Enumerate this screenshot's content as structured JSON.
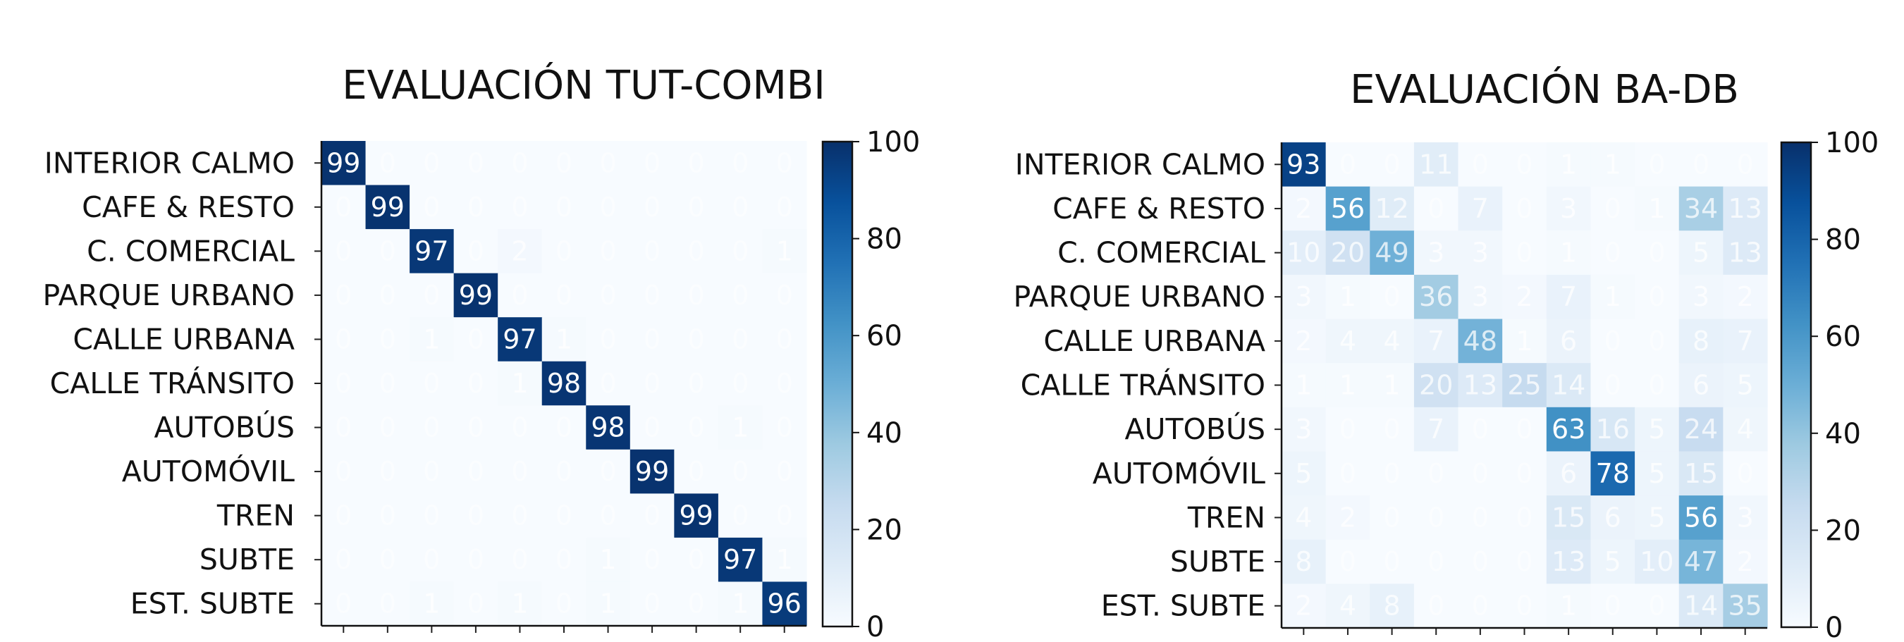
{
  "chart_data": [
    {
      "type": "heatmap",
      "title": "EVALUACIÓN TUT-COMBI",
      "rows": [
        "INTERIOR CALMO",
        "CAFE & RESTO",
        "C. COMERCIAL",
        "PARQUE URBANO",
        "CALLE URBANA",
        "CALLE TRÁNSITO",
        "AUTOBÚS",
        "AUTOMÓVIL",
        "TREN",
        "SUBTE",
        "EST. SUBTE"
      ],
      "values": [
        [
          99,
          0,
          0,
          0,
          0,
          0,
          0,
          0,
          0,
          0,
          0
        ],
        [
          0,
          99,
          0,
          0,
          0,
          0,
          0,
          0,
          0,
          0,
          0
        ],
        [
          0,
          0,
          97,
          0,
          2,
          0,
          0,
          0,
          0,
          0,
          1
        ],
        [
          0,
          0,
          0,
          99,
          0,
          0,
          0,
          0,
          0,
          0,
          0
        ],
        [
          0,
          0,
          1,
          0,
          97,
          1,
          0,
          0,
          0,
          0,
          0
        ],
        [
          0,
          0,
          0,
          0,
          1,
          98,
          0,
          0,
          0,
          0,
          0
        ],
        [
          0,
          0,
          0,
          0,
          0,
          0,
          98,
          0,
          0,
          1,
          0
        ],
        [
          0,
          0,
          0,
          0,
          0,
          0,
          0,
          99,
          0,
          0,
          0
        ],
        [
          0,
          0,
          0,
          0,
          0,
          0,
          0,
          0,
          99,
          0,
          0
        ],
        [
          0,
          0,
          0,
          0,
          0,
          0,
          1,
          0,
          0,
          97,
          1
        ],
        [
          0,
          0,
          1,
          0,
          1,
          0,
          1,
          0,
          0,
          1,
          96
        ]
      ],
      "colorbar": {
        "range": [
          0,
          100
        ],
        "ticks": [
          "0",
          "20",
          "40",
          "60",
          "80",
          "100"
        ]
      },
      "colors": {
        "low": "#f7fbff",
        "high": "#08306b"
      }
    },
    {
      "type": "heatmap",
      "title": "EVALUACIÓN BA-DB",
      "rows": [
        "INTERIOR CALMO",
        "CAFE & RESTO",
        "C. COMERCIAL",
        "PARQUE URBANO",
        "CALLE URBANA",
        "CALLE TRÁNSITO",
        "AUTOBÚS",
        "AUTOMÓVIL",
        "TREN",
        "SUBTE",
        "EST. SUBTE"
      ],
      "values": [
        [
          93,
          0,
          0,
          11,
          0,
          0,
          1,
          1,
          0,
          0,
          0
        ],
        [
          2,
          56,
          12,
          0,
          7,
          0,
          3,
          0,
          1,
          34,
          13
        ],
        [
          10,
          20,
          49,
          3,
          3,
          0,
          1,
          0,
          0,
          5,
          13
        ],
        [
          3,
          1,
          0,
          36,
          3,
          2,
          7,
          1,
          0,
          3,
          2
        ],
        [
          2,
          4,
          4,
          7,
          48,
          1,
          6,
          0,
          0,
          8,
          7
        ],
        [
          1,
          1,
          1,
          20,
          13,
          25,
          14,
          0,
          0,
          6,
          5
        ],
        [
          3,
          0,
          0,
          7,
          0,
          0,
          63,
          16,
          5,
          24,
          4
        ],
        [
          5,
          0,
          0,
          0,
          0,
          0,
          6,
          78,
          5,
          15,
          0
        ],
        [
          4,
          2,
          0,
          0,
          0,
          0,
          15,
          6,
          5,
          56,
          3
        ],
        [
          8,
          0,
          0,
          0,
          0,
          0,
          13,
          5,
          10,
          47,
          2
        ],
        [
          2,
          4,
          8,
          0,
          0,
          0,
          1,
          0,
          0,
          14,
          35
        ]
      ],
      "colorbar": {
        "range": [
          0,
          100
        ],
        "ticks": [
          "0",
          "20",
          "40",
          "60",
          "80",
          "100"
        ]
      },
      "colors": {
        "low": "#f7fbff",
        "high": "#08306b"
      }
    }
  ]
}
